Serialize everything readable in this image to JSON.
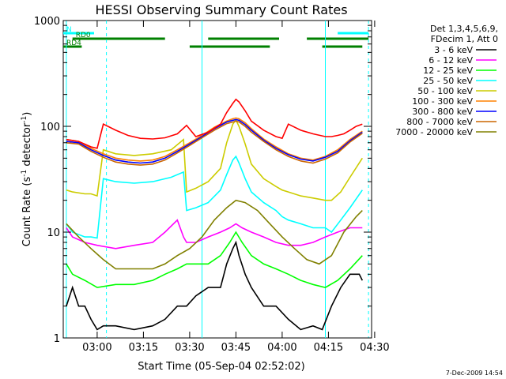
{
  "chart_data": {
    "type": "line",
    "title": "HESSI Observing Summary Count Rates",
    "xlabel": "Start Time (05-Sep-04 02:52:02)",
    "ylabel_parts": [
      "Count Rate (s",
      "-1",
      " detector",
      "-1",
      ")"
    ],
    "yscale": "log",
    "ylim": [
      1,
      1000
    ],
    "xlim_minutes": [
      -3,
      97
    ],
    "x_ticks": [
      {
        "label": "03:00",
        "m": 8
      },
      {
        "label": "03:15",
        "m": 23
      },
      {
        "label": "03:30",
        "m": 38
      },
      {
        "label": "03:45",
        "m": 53
      },
      {
        "label": "04:00",
        "m": 68
      },
      {
        "label": "04:15",
        "m": 83
      },
      {
        "label": "04:30",
        "m": 98
      }
    ],
    "y_ticks": [
      {
        "label": "1",
        "v": 1
      },
      {
        "label": "10",
        "v": 10
      },
      {
        "label": "100",
        "v": 100
      },
      {
        "label": "1000",
        "v": 1000
      }
    ],
    "legend_header": [
      "Det 1,3,4,5,6,9,",
      "FDecim 1, Att 0"
    ],
    "legend_position": "right",
    "series": [
      {
        "name": "3 - 6 keV",
        "color": "#000000",
        "x": [
          -2,
          0,
          2,
          4,
          6,
          8,
          10,
          14,
          20,
          26,
          30,
          34,
          37,
          40,
          44,
          48,
          50,
          52,
          53,
          54,
          56,
          58,
          62,
          66,
          70,
          74,
          78,
          81,
          84,
          87,
          90,
          93,
          94
        ],
        "y": [
          2,
          3,
          2,
          2,
          1.5,
          1.2,
          1.3,
          1.3,
          1.2,
          1.3,
          1.5,
          2,
          2,
          2.5,
          3,
          3,
          5,
          7,
          8,
          6,
          4,
          3,
          2,
          2,
          1.5,
          1.2,
          1.3,
          1.2,
          2,
          3,
          4,
          4,
          3.5
        ]
      },
      {
        "name": "6 - 12 keV",
        "color": "#ff00ff",
        "x": [
          -2,
          0,
          4,
          8,
          14,
          20,
          26,
          30,
          34,
          36,
          37,
          40,
          44,
          48,
          51,
          53,
          55,
          58,
          62,
          66,
          70,
          74,
          78,
          82,
          86,
          90,
          94
        ],
        "y": [
          11,
          9,
          8,
          7.5,
          7,
          7.5,
          8,
          10,
          13,
          9,
          8,
          8,
          9,
          10,
          11,
          12,
          11,
          10,
          9,
          8,
          7.5,
          7.5,
          8,
          9,
          10,
          11,
          11
        ]
      },
      {
        "name": "12 - 25 keV",
        "color": "#00ff00",
        "x": [
          -2,
          0,
          4,
          8,
          14,
          20,
          26,
          30,
          34,
          37,
          40,
          44,
          48,
          51,
          53,
          55,
          58,
          62,
          66,
          70,
          74,
          78,
          82,
          86,
          90,
          94
        ],
        "y": [
          5,
          4,
          3.5,
          3,
          3.2,
          3.2,
          3.5,
          4,
          4.5,
          5,
          5,
          5,
          6,
          8,
          10,
          8,
          6,
          5,
          4.5,
          4,
          3.5,
          3.2,
          3,
          3.5,
          4.5,
          6
        ]
      },
      {
        "name": "25 - 50 keV",
        "color": "#00ffff",
        "x": [
          -2,
          0,
          4,
          6,
          8,
          10,
          14,
          20,
          26,
          32,
          36,
          37,
          40,
          44,
          48,
          50,
          52,
          53,
          54,
          56,
          58,
          62,
          66,
          68,
          70,
          74,
          78,
          82,
          84,
          87,
          90,
          94
        ],
        "y": [
          12,
          10,
          9,
          9,
          8.8,
          32,
          30,
          29,
          30,
          33,
          37,
          16,
          17,
          19,
          25,
          35,
          48,
          52,
          45,
          32,
          24,
          19,
          16,
          14,
          13,
          12,
          11,
          11,
          10,
          13,
          17,
          25
        ]
      },
      {
        "name": "50 - 100 keV",
        "color": "#cccc00",
        "x": [
          -2,
          0,
          4,
          6,
          8,
          10,
          14,
          20,
          26,
          32,
          36,
          37,
          40,
          44,
          48,
          50,
          52,
          53,
          54,
          56,
          58,
          62,
          66,
          68,
          70,
          74,
          78,
          82,
          84,
          87,
          90,
          94
        ],
        "y": [
          25,
          24,
          23,
          23,
          22,
          60,
          55,
          53,
          55,
          60,
          75,
          24,
          26,
          30,
          40,
          70,
          105,
          115,
          100,
          68,
          44,
          32,
          27,
          25,
          24,
          22,
          21,
          20,
          20,
          24,
          33,
          50
        ]
      },
      {
        "name": "100 - 300 keV",
        "color": "#ff8000",
        "x": [
          -2,
          2,
          6,
          10,
          14,
          18,
          22,
          26,
          30,
          34,
          38,
          42,
          46,
          50,
          52,
          53,
          54,
          56,
          58,
          62,
          66,
          70,
          74,
          78,
          82,
          86,
          90,
          94
        ],
        "y": [
          75,
          72,
          62,
          55,
          50,
          48,
          47,
          48,
          52,
          60,
          70,
          82,
          98,
          112,
          118,
          120,
          118,
          108,
          95,
          76,
          64,
          55,
          50,
          48,
          52,
          60,
          75,
          90
        ]
      },
      {
        "name": "300 - 800 keV",
        "color": "#0000ff",
        "x": [
          -2,
          2,
          6,
          10,
          14,
          18,
          22,
          26,
          30,
          34,
          38,
          42,
          46,
          50,
          52,
          53,
          54,
          56,
          58,
          62,
          66,
          70,
          74,
          78,
          82,
          86,
          90,
          94
        ],
        "y": [
          72,
          70,
          60,
          53,
          48,
          46,
          45,
          46,
          50,
          58,
          68,
          80,
          95,
          110,
          114,
          116,
          114,
          104,
          92,
          74,
          62,
          54,
          49,
          47,
          51,
          58,
          73,
          88
        ]
      },
      {
        "name": "800 - 7000 keV",
        "color": "#cc6600",
        "x": [
          -2,
          2,
          6,
          10,
          14,
          18,
          22,
          26,
          30,
          34,
          38,
          42,
          46,
          50,
          52,
          53,
          54,
          56,
          58,
          62,
          66,
          70,
          74,
          78,
          82,
          86,
          90,
          94
        ],
        "y": [
          70,
          68,
          58,
          51,
          46,
          44,
          43,
          44,
          48,
          56,
          66,
          78,
          92,
          106,
          110,
          112,
          110,
          100,
          88,
          72,
          60,
          52,
          47,
          45,
          49,
          56,
          71,
          86
        ]
      },
      {
        "name": "7000 - 20000 keV",
        "color": "#808000",
        "x": [
          -2,
          2,
          6,
          10,
          14,
          18,
          22,
          26,
          30,
          34,
          38,
          42,
          46,
          50,
          53,
          56,
          60,
          64,
          68,
          72,
          76,
          80,
          84,
          88,
          92,
          94
        ],
        "y": [
          12,
          9,
          7,
          5.5,
          4.5,
          4.5,
          4.5,
          4.5,
          5,
          6,
          7,
          9,
          13,
          17,
          20,
          19,
          16,
          12,
          9,
          7,
          5.5,
          5,
          6,
          10,
          14,
          16
        ]
      },
      {
        "name": "7000 - 20000 keV (flare)",
        "color": "#ff0000",
        "legend": false,
        "x": [
          -2,
          2,
          6,
          8,
          10,
          14,
          18,
          22,
          26,
          30,
          34,
          37,
          40,
          44,
          48,
          50,
          52,
          53,
          54,
          56,
          58,
          62,
          66,
          68,
          70,
          74,
          78,
          82,
          84,
          86,
          88,
          90,
          92,
          94
        ],
        "y": [
          75,
          72,
          64,
          62,
          105,
          92,
          82,
          77,
          76,
          78,
          85,
          102,
          80,
          88,
          105,
          135,
          165,
          180,
          170,
          140,
          112,
          92,
          80,
          77,
          105,
          92,
          85,
          80,
          80,
          82,
          85,
          92,
          100,
          105
        ]
      }
    ],
    "state_bars": [
      {
        "label": "N",
        "color": "#00ffff",
        "segments": [
          [
            -3,
            7
          ],
          [
            86,
            96
          ]
        ]
      },
      {
        "label": "RD0",
        "color": "#008000",
        "segments": [
          [
            0,
            30
          ],
          [
            44,
            67
          ],
          [
            76,
            96
          ]
        ]
      },
      {
        "label": "RD4",
        "color": "#008000",
        "segments": [
          [
            -3,
            3
          ],
          [
            38,
            64
          ],
          [
            81,
            94
          ]
        ]
      }
    ],
    "vlines_solid_minutes": [
      -2,
      42,
      82
    ],
    "vlines_dashed_minutes": [
      11,
      96
    ],
    "footer_date": "7-Dec-2009 14:54"
  }
}
